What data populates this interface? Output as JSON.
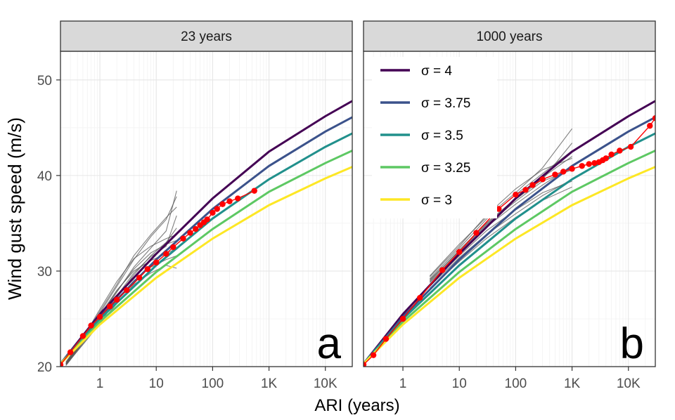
{
  "figure": {
    "ylabel": "Wind gust speed (m/s)",
    "xlabel": "ARI (years)"
  },
  "axes": {
    "y_ticks": [
      20,
      30,
      40,
      50
    ],
    "y_tick_labels": [
      "20",
      "30",
      "40",
      "50"
    ],
    "ylim": [
      20,
      53
    ],
    "x_scale": "log10",
    "xlim": [
      0.2,
      30000
    ],
    "x_ticks": [
      1,
      10,
      100,
      1000,
      10000
    ],
    "x_tick_labels": [
      "1",
      "10",
      "100",
      "1K",
      "10K"
    ],
    "grid": true,
    "theme_colors": {
      "strip_fill": "#d9d9d9",
      "panel_border": "#333333",
      "grid_major": "#e6e6e6",
      "grid_minor": "#f2f2f2",
      "observed": "#ff0000",
      "simulated": "#555555"
    }
  },
  "panels": [
    {
      "strip": "23 years",
      "letter": "a"
    },
    {
      "strip": "1000 years",
      "letter": "b"
    }
  ],
  "legend": {
    "placement": "top-left inside panel b",
    "entries": [
      {
        "label": "σ = 4",
        "color": "#440154"
      },
      {
        "label": "σ = 3.75",
        "color": "#3b528b"
      },
      {
        "label": "σ = 3.5",
        "color": "#21908c"
      },
      {
        "label": "σ = 3.25",
        "color": "#5dc863"
      },
      {
        "label": "σ = 3",
        "color": "#fde725"
      }
    ]
  },
  "chart_data": [
    {
      "type": "line",
      "panel": "23 years",
      "xlabel": "ARI (years)",
      "ylabel": "Wind gust speed (m/s)",
      "series": [
        {
          "name": "σ = 4",
          "x": [
            0.2,
            1,
            10,
            100,
            1000,
            10000,
            30000
          ],
          "y": [
            20.3,
            25.5,
            31.8,
            37.6,
            42.5,
            46.2,
            47.8
          ]
        },
        {
          "name": "σ = 3.75",
          "x": [
            0.2,
            1,
            10,
            100,
            1000,
            10000,
            30000
          ],
          "y": [
            20.3,
            25.2,
            31.2,
            36.5,
            41.0,
            44.6,
            46.1
          ]
        },
        {
          "name": "σ = 3.5",
          "x": [
            0.2,
            1,
            10,
            100,
            1000,
            10000,
            30000
          ],
          "y": [
            20.3,
            25.0,
            30.6,
            35.5,
            39.6,
            43.0,
            44.4
          ]
        },
        {
          "name": "σ = 3.25",
          "x": [
            0.2,
            1,
            10,
            100,
            1000,
            10000,
            30000
          ],
          "y": [
            20.3,
            24.7,
            29.9,
            34.4,
            38.3,
            41.3,
            42.6
          ]
        },
        {
          "name": "σ = 3",
          "x": [
            0.2,
            1,
            10,
            100,
            1000,
            10000,
            30000
          ],
          "y": [
            20.3,
            24.4,
            29.3,
            33.4,
            36.9,
            39.7,
            40.9
          ]
        }
      ],
      "observed": {
        "x": [
          0.2,
          0.3,
          0.5,
          0.7,
          1,
          1.5,
          2,
          3,
          5,
          7,
          10,
          15,
          20,
          30,
          40,
          50,
          60,
          70,
          80,
          100,
          120,
          150,
          200,
          280,
          550
        ],
        "y": [
          20.2,
          21.5,
          23.2,
          24.3,
          25.2,
          26.3,
          27.0,
          28.0,
          29.3,
          30.2,
          30.9,
          31.8,
          32.5,
          33.4,
          34.0,
          34.4,
          34.8,
          35.1,
          35.4,
          36.1,
          36.5,
          37.0,
          37.3,
          37.6,
          38.4
        ]
      },
      "simulations": [
        {
          "x": [
            0.25,
            0.5,
            1,
            2,
            4,
            8,
            15,
            23
          ],
          "y": [
            20.4,
            22.8,
            25.6,
            28.4,
            31.2,
            33.6,
            35.4,
            37.8
          ]
        },
        {
          "x": [
            0.25,
            0.5,
            1,
            2,
            4,
            8,
            15,
            23
          ],
          "y": [
            20.2,
            22.5,
            24.8,
            27.2,
            29.6,
            31.6,
            33.0,
            34.5
          ]
        },
        {
          "x": [
            0.25,
            0.5,
            1,
            2,
            4,
            8,
            15,
            23
          ],
          "y": [
            20.5,
            22.9,
            25.8,
            28.6,
            31.6,
            33.8,
            35.6,
            36.7
          ]
        },
        {
          "x": [
            0.25,
            0.5,
            1,
            2,
            4,
            8,
            15,
            23
          ],
          "y": [
            20.1,
            22.4,
            24.6,
            27.0,
            29.0,
            30.4,
            31.2,
            31.6
          ]
        },
        {
          "x": [
            0.25,
            0.5,
            1,
            2,
            4,
            8,
            15,
            23
          ],
          "y": [
            20.3,
            22.6,
            25.2,
            27.8,
            30.4,
            32.4,
            34.2,
            38.4
          ]
        },
        {
          "x": [
            0.25,
            0.5,
            1,
            2,
            4,
            8,
            15,
            23
          ],
          "y": [
            20.2,
            22.3,
            24.5,
            26.6,
            28.6,
            29.8,
            30.6,
            30.3
          ]
        },
        {
          "x": [
            0.25,
            0.5,
            1,
            2,
            4,
            8,
            15,
            23
          ],
          "y": [
            20.4,
            23.0,
            26.0,
            28.9,
            31.3,
            32.6,
            33.4,
            33.8
          ]
        },
        {
          "x": [
            0.25,
            0.5,
            1,
            2,
            4,
            8,
            15,
            23
          ],
          "y": [
            20.3,
            22.7,
            25.3,
            27.9,
            30.2,
            31.9,
            32.8,
            33.2
          ]
        },
        {
          "x": [
            0.25,
            0.5,
            1,
            2,
            4,
            8,
            15,
            23
          ],
          "y": [
            20.2,
            22.6,
            25.0,
            27.4,
            29.8,
            31.5,
            32.6,
            35.8
          ]
        },
        {
          "x": [
            0.25,
            0.5,
            1,
            2,
            4,
            8,
            15,
            23
          ],
          "y": [
            20.3,
            22.8,
            25.4,
            28.0,
            30.0,
            31.1,
            31.8,
            32.4
          ]
        }
      ]
    },
    {
      "type": "line",
      "panel": "1000 years",
      "xlabel": "ARI (years)",
      "ylabel": "Wind gust speed (m/s)",
      "series": [
        {
          "name": "σ = 4",
          "x": [
            0.2,
            1,
            10,
            100,
            1000,
            10000,
            30000
          ],
          "y": [
            20.3,
            25.5,
            31.8,
            37.6,
            42.5,
            46.2,
            47.8
          ]
        },
        {
          "name": "σ = 3.75",
          "x": [
            0.2,
            1,
            10,
            100,
            1000,
            10000,
            30000
          ],
          "y": [
            20.3,
            25.2,
            31.2,
            36.5,
            41.0,
            44.6,
            46.1
          ]
        },
        {
          "name": "σ = 3.5",
          "x": [
            0.2,
            1,
            10,
            100,
            1000,
            10000,
            30000
          ],
          "y": [
            20.3,
            25.0,
            30.6,
            35.5,
            39.6,
            43.0,
            44.4
          ]
        },
        {
          "name": "σ = 3.25",
          "x": [
            0.2,
            1,
            10,
            100,
            1000,
            10000,
            30000
          ],
          "y": [
            20.3,
            24.7,
            29.9,
            34.4,
            38.3,
            41.3,
            42.6
          ]
        },
        {
          "name": "σ = 3",
          "x": [
            0.2,
            1,
            10,
            100,
            1000,
            10000,
            30000
          ],
          "y": [
            20.3,
            24.4,
            29.3,
            33.4,
            36.9,
            39.7,
            40.9
          ]
        }
      ],
      "observed": {
        "x": [
          0.2,
          0.3,
          0.5,
          1,
          2,
          5,
          10,
          20,
          50,
          100,
          150,
          200,
          300,
          500,
          700,
          1000,
          1500,
          2000,
          2500,
          3000,
          3500,
          4000,
          5000,
          7000,
          11000,
          24000,
          30000
        ],
        "y": [
          20.2,
          21.2,
          22.9,
          25.0,
          27.2,
          30.1,
          32.0,
          34.0,
          36.5,
          38.0,
          38.5,
          39.0,
          39.6,
          40.1,
          40.4,
          40.7,
          41.0,
          41.2,
          41.3,
          41.4,
          41.6,
          41.8,
          42.2,
          42.6,
          43.0,
          45.2,
          46.0
        ]
      },
      "simulations": [
        {
          "x": [
            3,
            10,
            30,
            100,
            300,
            1000
          ],
          "y": [
            29.5,
            32.8,
            35.6,
            38.2,
            40.8,
            44.9
          ]
        },
        {
          "x": [
            3,
            10,
            30,
            100,
            300,
            1000
          ],
          "y": [
            28.6,
            31.6,
            34.2,
            36.4,
            38.2,
            39.4
          ]
        },
        {
          "x": [
            3,
            10,
            30,
            100,
            300,
            1000
          ],
          "y": [
            29.0,
            32.2,
            35.0,
            37.6,
            39.8,
            42.0
          ]
        },
        {
          "x": [
            3,
            10,
            30,
            100,
            300,
            1000
          ],
          "y": [
            28.2,
            31.0,
            33.4,
            35.6,
            37.4,
            38.8
          ]
        },
        {
          "x": [
            3,
            10,
            30,
            100,
            300,
            1000
          ],
          "y": [
            29.2,
            32.4,
            35.4,
            38.0,
            40.2,
            42.6
          ]
        },
        {
          "x": [
            3,
            10,
            30,
            100,
            300,
            1000
          ],
          "y": [
            28.8,
            31.8,
            34.6,
            37.0,
            39.0,
            41.0
          ]
        },
        {
          "x": [
            3,
            10,
            30,
            100,
            300,
            1000
          ],
          "y": [
            28.4,
            31.4,
            33.8,
            36.0,
            37.9,
            39.6
          ]
        },
        {
          "x": [
            3,
            10,
            30,
            100,
            300,
            1000
          ],
          "y": [
            29.4,
            32.6,
            35.8,
            38.6,
            40.6,
            41.8
          ]
        },
        {
          "x": [
            3,
            10,
            30,
            100,
            300,
            1000
          ],
          "y": [
            28.9,
            32.0,
            34.8,
            37.3,
            39.4,
            40.6
          ]
        },
        {
          "x": [
            3,
            10,
            30,
            100,
            300,
            1000
          ],
          "y": [
            29.1,
            32.1,
            34.9,
            37.5,
            39.6,
            43.4
          ]
        }
      ]
    }
  ]
}
